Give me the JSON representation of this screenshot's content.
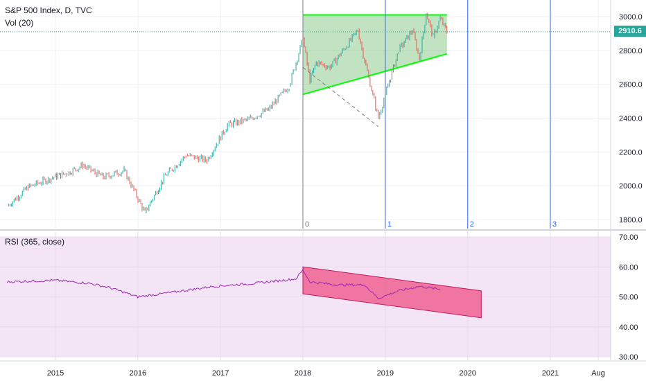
{
  "header": {
    "title": "S&P 500 Index, D, TVC",
    "volume_label": "Vol (20)",
    "current_price": "2910.6"
  },
  "rsi_panel": {
    "label": "RSI (365, close)"
  },
  "colors": {
    "candle_up": "#26a69a",
    "candle_down": "#ef5350",
    "rsi_line": "#9c27b0",
    "rsi_background": "#f3e5f5",
    "channel_fill": "#4caf50",
    "channel_line": "#00ff00",
    "rsi_channel_fill": "#f06292",
    "cycle_line": "#2962ff",
    "price_tag": "#26a69a"
  },
  "chart_data": [
    {
      "type": "line",
      "name": "price",
      "x": [
        "2014-06",
        "2014-09",
        "2014-12",
        "2015-03",
        "2015-05",
        "2015-08",
        "2015-11",
        "2016-02",
        "2016-05",
        "2016-08",
        "2016-11",
        "2017-02",
        "2017-05",
        "2017-08",
        "2017-11",
        "2018-01",
        "2018-02",
        "2018-03",
        "2018-05",
        "2018-08",
        "2018-09",
        "2018-10",
        "2018-12",
        "2019-01",
        "2019-03",
        "2019-05",
        "2019-06",
        "2019-07",
        "2019-08",
        "2019-09",
        "2019-10"
      ],
      "y": [
        1880,
        1990,
        2040,
        2080,
        2120,
        2050,
        2090,
        1840,
        2060,
        2180,
        2150,
        2360,
        2390,
        2450,
        2590,
        2870,
        2620,
        2730,
        2700,
        2860,
        2920,
        2740,
        2400,
        2540,
        2800,
        2920,
        2750,
        3020,
        2880,
        2990,
        2910
      ],
      "xlim": [
        "2014-06",
        "2021-09"
      ],
      "ylim": [
        1760,
        3080
      ],
      "y_ticks": [
        "3000.0",
        "2800.0",
        "2600.0",
        "2400.0",
        "2200.0",
        "2000.0",
        "1800.0"
      ],
      "x_ticks": [
        "2015",
        "2016",
        "2017",
        "2018",
        "2019",
        "2020",
        "2021",
        "Aug"
      ],
      "current_price": 2910.6,
      "annotations": {
        "cycle_markers": [
          "0",
          "1",
          "2",
          "3"
        ],
        "ascending_channel": {
          "upper": [
            3010,
            3010
          ],
          "lower": [
            2540,
            2780
          ]
        }
      }
    },
    {
      "type": "line",
      "name": "RSI (365, close)",
      "ylim": [
        30,
        70
      ],
      "y_ticks": [
        "70.00",
        "60.00",
        "50.00",
        "40.00",
        "30.00"
      ],
      "x": [
        "2014-06",
        "2015-01",
        "2015-06",
        "2015-09",
        "2016-01",
        "2016-06",
        "2016-12",
        "2017-06",
        "2017-12",
        "2018-01",
        "2018-02",
        "2018-06",
        "2018-10",
        "2018-12",
        "2019-03",
        "2019-06",
        "2019-09"
      ],
      "y": [
        55,
        55.5,
        54.5,
        53,
        50,
        51.5,
        53.5,
        54.5,
        56,
        59,
        55,
        54,
        54,
        49.5,
        52,
        53.5,
        52.5
      ],
      "annotations": {
        "descending_channel": {
          "upper": [
            60,
            52
          ],
          "lower": [
            51,
            43
          ]
        }
      }
    }
  ]
}
